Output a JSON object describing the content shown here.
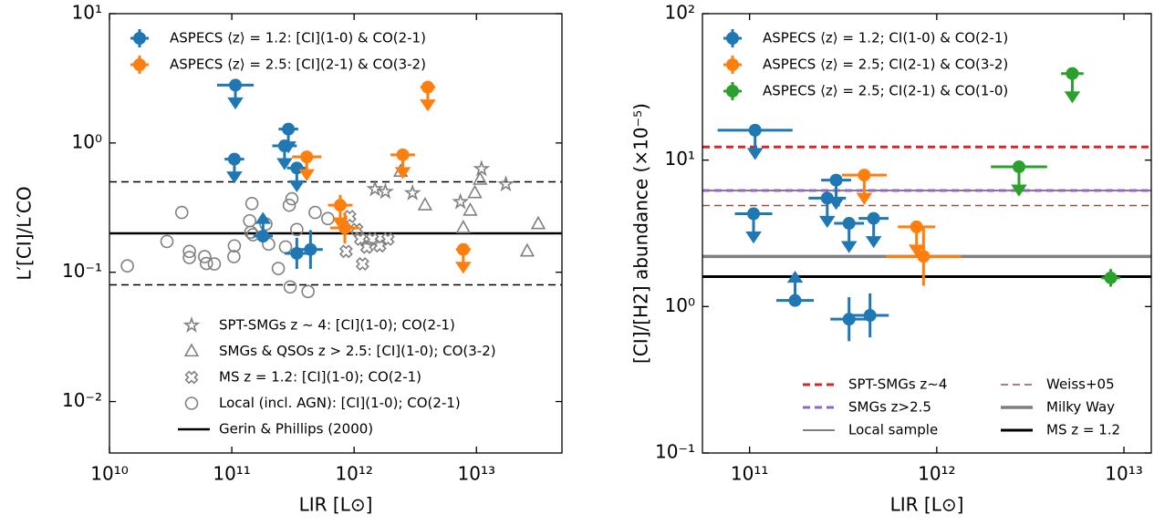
{
  "chart_data": [
    {
      "type": "scatter",
      "xscale": "log",
      "yscale": "log",
      "xlabel": "LIR [L⊙]",
      "ylabel": "L′[CI]/L′CO",
      "xlim": [
        10000000000.0,
        50000000000000.0
      ],
      "ylim": [
        0.004,
        10
      ],
      "xticks": [
        {
          "value": 10000000000.0,
          "label": "10¹⁰"
        },
        {
          "value": 100000000000.0,
          "label": "10¹¹"
        },
        {
          "value": 1000000000000.0,
          "label": "10¹²"
        },
        {
          "value": 10000000000000.0,
          "label": "10¹³"
        }
      ],
      "yticks": [
        {
          "value": 0.01,
          "label": "10⁻²"
        },
        {
          "value": 0.1,
          "label": "10⁻¹"
        },
        {
          "value": 1,
          "label": "10⁰"
        },
        {
          "value": 10,
          "label": "10¹"
        }
      ],
      "legend": "upper left",
      "series": [
        {
          "name": "ASPECS ⟨z⟩ = 1.2: [CI](1-0) & CO(2-1)",
          "color": "#1f77b4",
          "x": [
            107000000000.0,
            105000000000.0,
            290000000000.0,
            270000000000.0,
            340000000000.0,
            180000000000.0,
            340000000000.0,
            440000000000.0
          ],
          "values": [
            2.8,
            0.75,
            1.28,
            0.95,
            0.64,
            0.19,
            0.14,
            0.15
          ],
          "xerr": [
            0.15,
            0.08,
            0.08,
            0.1,
            0.08,
            0.08,
            0.1,
            0.1
          ],
          "yerr": [
            0,
            0,
            0,
            0,
            0,
            0,
            0.12,
            0.15
          ],
          "limits": [
            "upper",
            "upper",
            "upper",
            "upper",
            "upper",
            "lower",
            null,
            null
          ]
        },
        {
          "name": "ASPECS ⟨z⟩ = 2.5: [CI](2-1) & CO(3-2)",
          "color": "#ff7f0e",
          "x": [
            410000000000.0,
            770000000000.0,
            840000000000.0,
            2500000000000.0,
            4000000000000.0,
            7800000000000.0
          ],
          "values": [
            0.78,
            0.33,
            0.22,
            0.81,
            2.7,
            0.15
          ],
          "xerr": [
            0.12,
            0.1,
            0.12,
            0.1,
            0.06,
            0.06
          ],
          "yerr": [
            0,
            0.08,
            0.12,
            0,
            0,
            0
          ],
          "limits": [
            "upper",
            "upper",
            null,
            "upper",
            "upper",
            "upper"
          ]
        }
      ],
      "reference_legend": "lower center",
      "reference_series": [
        {
          "name": "SPT-SMGs z ∼ 4: [CI](1-0); CO(2-1)",
          "color": "#808080",
          "marker": "star",
          "x": [
            1480000000000.0,
            1800000000000.0,
            3000000000000.0,
            11000000000000.0,
            7400000000000.0,
            17400000000000.0
          ],
          "values": [
            0.44,
            0.42,
            0.41,
            0.63,
            0.35,
            0.48
          ]
        },
        {
          "name": "SMGs & QSOs z > 2.5: [CI](1-0); CO(3-2)",
          "color": "#808080",
          "marker": "triangle",
          "x": [
            2400000000000.0,
            10700000000000.0,
            3800000000000.0,
            8900000000000.0,
            7800000000000.0,
            32000000000000.0,
            26000000000000.0,
            9700000000000.0
          ],
          "values": [
            0.6,
            0.52,
            0.33,
            0.3,
            0.22,
            0.236,
            0.145,
            0.41
          ]
        },
        {
          "name": "MS z = 1.2: [CI](1-0); CO(2-1)",
          "color": "#808080",
          "marker": "cross",
          "x": [
            920000000000.0,
            1050000000000.0,
            1130000000000.0,
            1270000000000.0,
            1410000000000.0,
            1620000000000.0,
            1890000000000.0,
            860000000000.0,
            1170000000000.0
          ],
          "values": [
            0.27,
            0.214,
            0.18,
            0.156,
            0.18,
            0.16,
            0.18,
            0.145,
            0.116
          ]
        },
        {
          "name": "Local (incl. AGN): [CI](1-0); CO(2-1)",
          "color": "#808080",
          "marker": "circle",
          "x": [
            14000000000.0,
            29500000000.0,
            39000000000.0,
            45000000000.0,
            60000000000.0,
            62000000000.0,
            45000000000.0,
            105000000000.0,
            104000000000.0,
            140000000000.0,
            146000000000.0,
            143000000000.0,
            149000000000.0,
            190000000000.0,
            200000000000.0,
            240000000000.0,
            275000000000.0,
            295000000000.0,
            310000000000.0,
            300000000000.0,
            420000000000.0,
            340000000000.0,
            480000000000.0,
            610000000000.0,
            72000000000.0
          ],
          "values": [
            0.112,
            0.173,
            0.29,
            0.145,
            0.132,
            0.117,
            0.13,
            0.16,
            0.132,
            0.25,
            0.34,
            0.204,
            0.195,
            0.236,
            0.165,
            0.107,
            0.157,
            0.33,
            0.37,
            0.077,
            0.071,
            0.214,
            0.29,
            0.26,
            0.116
          ]
        }
      ],
      "hlines": [
        {
          "name": "Gerin & Phillips (2000)",
          "value": 0.2,
          "color": "#000000",
          "style": "solid",
          "width": 2.5
        },
        {
          "value": 0.5,
          "color": "#000000",
          "style": "dashed",
          "width": 1.5
        },
        {
          "value": 0.08,
          "color": "#000000",
          "style": "dashed",
          "width": 1.5
        }
      ]
    },
    {
      "type": "scatter",
      "xscale": "log",
      "yscale": "log",
      "xlabel": "LIR [L⊙]",
      "ylabel": "[CI]/[H2] abundance (×10⁻⁵)",
      "xlim": [
        56000000000.0,
        14000000000000.0
      ],
      "ylim": [
        0.1,
        100
      ],
      "xticks": [
        {
          "value": 100000000000.0,
          "label": "10¹¹"
        },
        {
          "value": 1000000000000.0,
          "label": "10¹²"
        },
        {
          "value": 10000000000000.0,
          "label": "10¹³"
        }
      ],
      "yticks": [
        {
          "value": 0.1,
          "label": "10⁻¹"
        },
        {
          "value": 1,
          "label": "10⁰"
        },
        {
          "value": 10,
          "label": "10¹"
        },
        {
          "value": 100,
          "label": "10²"
        }
      ],
      "legend": "upper left",
      "series": [
        {
          "name": "ASPECS ⟨z⟩ = 1.2; CI(1-0) & CO(2-1)",
          "color": "#1f77b4",
          "x": [
            107000000000.0,
            105000000000.0,
            175000000000.0,
            260000000000.0,
            290000000000.0,
            340000000000.0,
            460000000000.0,
            340000000000.0,
            440000000000.0
          ],
          "values": [
            16,
            4.3,
            1.1,
            5.5,
            7.3,
            3.7,
            4.0,
            0.82,
            0.87
          ],
          "xerr": [
            0.2,
            0.1,
            0.1,
            0.1,
            0.08,
            0.08,
            0.08,
            0.1,
            0.1
          ],
          "yerr": [
            0,
            0,
            0,
            0,
            0,
            0,
            0,
            0.15,
            0.15
          ],
          "limits": [
            "upper",
            "upper",
            "lower",
            "upper",
            "upper",
            "upper",
            "upper",
            null,
            null
          ]
        },
        {
          "name": "ASPECS ⟨z⟩ = 2.5; CI(2-1) & CO(3-2)",
          "color": "#ff7f0e",
          "x": [
            410000000000.0,
            780000000000.0,
            850000000000.0
          ],
          "values": [
            7.9,
            3.5,
            2.2
          ],
          "xerr": [
            0.12,
            0.1,
            0.2
          ],
          "yerr": [
            0,
            0,
            0.2
          ],
          "limits": [
            "upper",
            "upper",
            null
          ]
        },
        {
          "name": "ASPECS ⟨z⟩ = 2.5; CI(2-1) & CO(1-0)",
          "color": "#2ca02c",
          "x": [
            2750000000000.0,
            5300000000000.0,
            8500000000000.0
          ],
          "values": [
            9.0,
            39,
            1.57
          ],
          "xerr": [
            0.15,
            0.06,
            0.05
          ],
          "yerr": [
            0,
            0,
            0.06
          ],
          "limits": [
            "upper",
            "upper",
            null
          ]
        }
      ],
      "hline_legend": "lower right",
      "hline_legend_ncol": 2,
      "hlines": [
        {
          "name": "SPT-SMGs z∼4",
          "value": 12.3,
          "color": "#d62728",
          "style": "dashed",
          "width": 3
        },
        {
          "name": "SMGs z>2.5",
          "value": 6.2,
          "color": "#9467bd",
          "style": "dashed",
          "width": 3
        },
        {
          "name": "Local sample",
          "value": 6.2,
          "color": "#7f7f7f",
          "style": "solid",
          "width": 2
        },
        {
          "name": "Weiss+05",
          "value": 4.9,
          "color": "#8c564b",
          "style": "dashed",
          "width": 1.5
        },
        {
          "name": "Milky Way",
          "value": 2.2,
          "color": "#7f7f7f",
          "style": "solid",
          "width": 3.5
        },
        {
          "name": "MS z = 1.2",
          "value": 1.6,
          "color": "#000000",
          "style": "solid",
          "width": 3
        }
      ]
    }
  ]
}
